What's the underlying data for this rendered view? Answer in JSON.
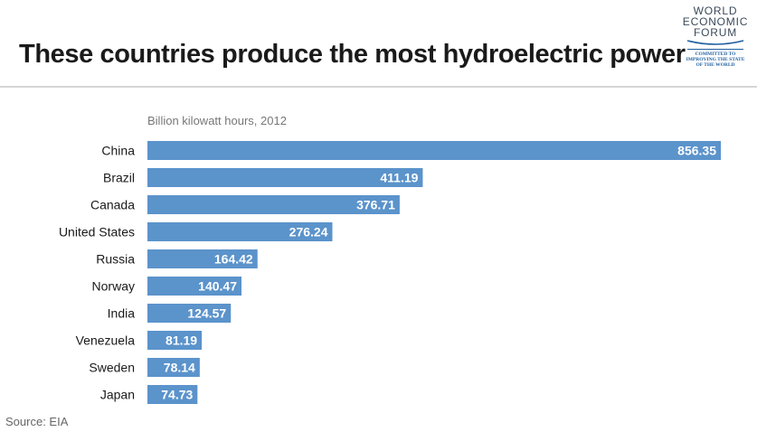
{
  "title": "These countries produce the most hydroelectric power",
  "logo": {
    "lines": [
      "WORLD",
      "ECONOMIC",
      "FORUM"
    ],
    "tagline": [
      "COMMITTED TO",
      "IMPROVING THE STATE",
      "OF THE WORLD"
    ]
  },
  "source": "Source: EIA",
  "colors": {
    "bar": "#5b93cb",
    "bar_label": "#ffffff",
    "category_label": "#1a1a1a",
    "subtitle": "#777777"
  },
  "chart_data": {
    "type": "bar",
    "orientation": "horizontal",
    "subtitle": "Billion kilowatt hours, 2012",
    "categories": [
      "China",
      "Brazil",
      "Canada",
      "United States",
      "Russia",
      "Norway",
      "India",
      "Venezuela",
      "Sweden",
      "Japan"
    ],
    "values": [
      856.35,
      411.19,
      376.71,
      276.24,
      164.42,
      140.47,
      124.57,
      81.19,
      78.14,
      74.73
    ],
    "value_labels": [
      "856.35",
      "411.19",
      "376.71",
      "276.24",
      "164.42",
      "140.47",
      "124.57",
      "81.19",
      "78.14",
      "74.73"
    ],
    "xlim": [
      0,
      856.35
    ],
    "grid": false,
    "legend": "none"
  }
}
